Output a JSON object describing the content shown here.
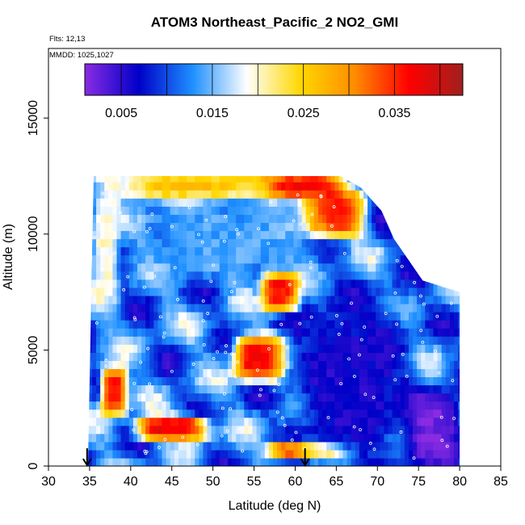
{
  "chart_data": {
    "type": "heatmap",
    "title": "ATOM3 Northeast_Pacific_2 NO2_GMI",
    "annotations": [
      "Flts: 12,13",
      "MMDD: 1025,1027"
    ],
    "xlabel": "Latitude (deg N)",
    "ylabel": "Altitude (m)",
    "xlim": [
      30,
      85
    ],
    "ylim": [
      0,
      18000
    ],
    "x_ticks": [
      "30",
      "35",
      "40",
      "45",
      "50",
      "55",
      "60",
      "65",
      "70",
      "75",
      "80",
      "85"
    ],
    "y_ticks": [
      "0",
      "5000",
      "10000",
      "15000"
    ],
    "grid": false,
    "colorbar": {
      "range": [
        0.001,
        0.0425
      ],
      "ticks": [
        "0.005",
        "0.015",
        "0.025",
        "0.035"
      ],
      "colors": [
        "#8a2be2",
        "#0000c8",
        "#1e90ff",
        "#ffffff",
        "#ffd700",
        "#ff8c00",
        "#ff0000",
        "#a0201d"
      ]
    },
    "arrows_at_latitude": [
      34.7,
      61.2
    ],
    "flight_data_extent": {
      "lat_range": [
        34.8,
        80.0
      ],
      "alt_range": [
        0,
        12500
      ],
      "top_altitude_by_latitude": [
        [
          35.5,
          12500
        ],
        [
          65.5,
          12500
        ],
        [
          68,
          12000
        ],
        [
          70.5,
          11000
        ],
        [
          72,
          9800
        ],
        [
          75.5,
          8000
        ],
        [
          80,
          7500
        ]
      ]
    },
    "regions": [
      {
        "lat": [
          36,
          38
        ],
        "alt": [
          7000,
          12000
        ],
        "value": 0.02,
        "note": "light blue edge"
      },
      {
        "lat": [
          38,
          56
        ],
        "alt": [
          11600,
          12500
        ],
        "value": 0.027,
        "note": "upper light band"
      },
      {
        "lat": [
          56,
          66
        ],
        "alt": [
          11600,
          12500
        ],
        "value": 0.038,
        "note": "upper high band"
      },
      {
        "lat": [
          61,
          68
        ],
        "alt": [
          10000,
          11800
        ],
        "value": 0.036,
        "note": "upper right maximum"
      },
      {
        "lat": [
          40,
          62
        ],
        "alt": [
          8000,
          11500
        ],
        "value": 0.014,
        "note": "mid blue region"
      },
      {
        "lat": [
          56.5,
          60
        ],
        "alt": [
          6800,
          8200
        ],
        "value": 0.037,
        "note": "mid red core"
      },
      {
        "lat": [
          53,
          58
        ],
        "alt": [
          3800,
          5500
        ],
        "value": 0.037,
        "note": "central red core"
      },
      {
        "lat": [
          41,
          49
        ],
        "alt": [
          1300,
          2000
        ],
        "value": 0.038,
        "note": "lower red streak"
      },
      {
        "lat": [
          37,
          39
        ],
        "alt": [
          2300,
          4200
        ],
        "value": 0.036,
        "note": "left edge maximum"
      },
      {
        "lat": [
          57,
          66
        ],
        "alt": [
          500,
          900
        ],
        "value": 0.038,
        "note": "near-surface red streak"
      },
      {
        "lat": [
          60,
          74
        ],
        "alt": [
          0,
          7500
        ],
        "value": 0.006,
        "note": "dark blue east region"
      },
      {
        "lat": [
          74,
          80
        ],
        "alt": [
          0,
          3300
        ],
        "value": 0.002,
        "note": "purple low east region"
      }
    ]
  }
}
